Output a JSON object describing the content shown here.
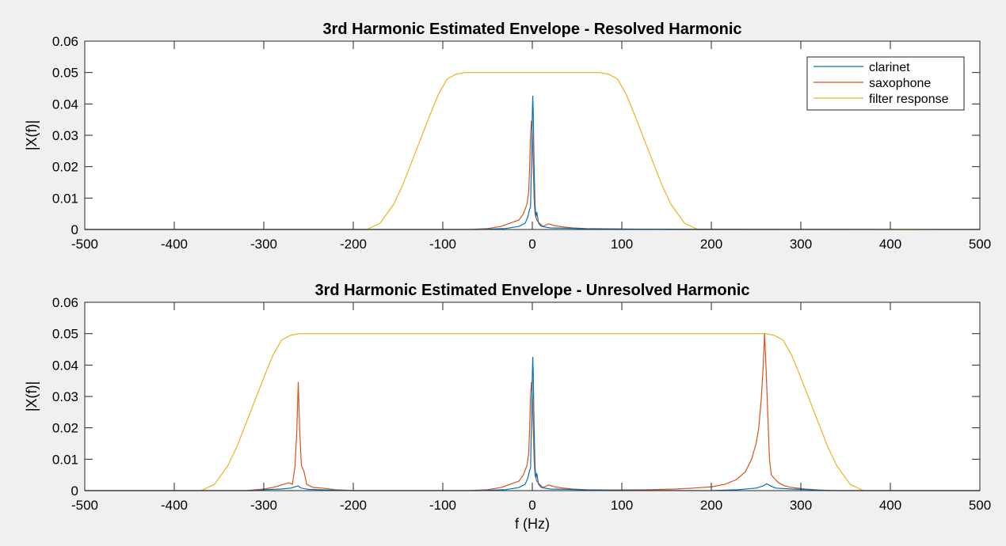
{
  "chart_data": [
    {
      "type": "line",
      "title": "3rd Harmonic Estimated Envelope - Resolved Harmonic",
      "xlabel": "",
      "ylabel": "|X(f)|",
      "xlim": [
        -500,
        500
      ],
      "ylim": [
        0,
        0.06
      ],
      "xticks": [
        -500,
        -400,
        -300,
        -200,
        -100,
        0,
        100,
        200,
        300,
        400,
        500
      ],
      "xtick_labels": [
        "-500",
        "-400",
        "-300",
        "-200",
        "-100",
        "0",
        "100",
        "200",
        "300",
        "400",
        "500"
      ],
      "yticks": [
        0,
        0.01,
        0.02,
        0.03,
        0.04,
        0.05,
        0.06
      ],
      "ytick_labels": [
        "0",
        "0.01",
        "0.02",
        "0.03",
        "0.04",
        "0.05",
        "0.06"
      ],
      "grid": false,
      "legend": {
        "position": "top-right",
        "entries": [
          "clarinet",
          "saxophone",
          "filter response"
        ]
      },
      "series": [
        {
          "name": "clarinet",
          "color": "#0072bd",
          "points": [
            [
              -500,
              0
            ],
            [
              -60,
              0
            ],
            [
              -30,
              0.0003
            ],
            [
              -15,
              0.001
            ],
            [
              -8,
              0.002
            ],
            [
              -5,
              0.004
            ],
            [
              -3,
              0.0065
            ],
            [
              -2,
              0.007
            ],
            [
              -1,
              0.02
            ],
            [
              0,
              0.037
            ],
            [
              0.5,
              0.0425
            ],
            [
              1,
              0.038
            ],
            [
              2,
              0.02
            ],
            [
              3,
              0.008
            ],
            [
              4,
              0.004
            ],
            [
              5,
              0.0055
            ],
            [
              7,
              0.002
            ],
            [
              10,
              0.001
            ],
            [
              20,
              0.0005
            ],
            [
              40,
              0.0004
            ],
            [
              60,
              0.0002
            ],
            [
              100,
              0.0001
            ],
            [
              500,
              0
            ]
          ]
        },
        {
          "name": "saxophone",
          "color": "#d95319",
          "points": [
            [
              -500,
              0
            ],
            [
              -70,
              0
            ],
            [
              -50,
              0.0003
            ],
            [
              -35,
              0.001
            ],
            [
              -25,
              0.002
            ],
            [
              -15,
              0.003
            ],
            [
              -10,
              0.005
            ],
            [
              -6,
              0.008
            ],
            [
              -4,
              0.012
            ],
            [
              -3,
              0.02
            ],
            [
              -2,
              0.03
            ],
            [
              -1,
              0.0345
            ],
            [
              0,
              0.03
            ],
            [
              1,
              0.02
            ],
            [
              2,
              0.01
            ],
            [
              3,
              0.005
            ],
            [
              5,
              0.003
            ],
            [
              8,
              0.002
            ],
            [
              12,
              0.001
            ],
            [
              18,
              0.0018
            ],
            [
              25,
              0.0012
            ],
            [
              35,
              0.0008
            ],
            [
              45,
              0.0005
            ],
            [
              60,
              0.0003
            ],
            [
              90,
              0.0002
            ],
            [
              150,
              0
            ],
            [
              500,
              0
            ]
          ]
        },
        {
          "name": "filter response",
          "color": "#edb120",
          "points": [
            [
              -500,
              0
            ],
            [
              -185,
              0
            ],
            [
              -170,
              0.002
            ],
            [
              -155,
              0.008
            ],
            [
              -145,
              0.014
            ],
            [
              -130,
              0.025
            ],
            [
              -115,
              0.036
            ],
            [
              -105,
              0.043
            ],
            [
              -95,
              0.048
            ],
            [
              -85,
              0.0495
            ],
            [
              -75,
              0.05
            ],
            [
              -60,
              0.05
            ],
            [
              60,
              0.05
            ],
            [
              75,
              0.05
            ],
            [
              85,
              0.0495
            ],
            [
              95,
              0.048
            ],
            [
              105,
              0.043
            ],
            [
              115,
              0.036
            ],
            [
              130,
              0.025
            ],
            [
              145,
              0.014
            ],
            [
              155,
              0.008
            ],
            [
              170,
              0.002
            ],
            [
              185,
              0
            ],
            [
              500,
              0
            ]
          ]
        }
      ]
    },
    {
      "type": "line",
      "title": "3rd Harmonic Estimated Envelope - Unresolved Harmonic",
      "xlabel": "f (Hz)",
      "ylabel": "|X(f)|",
      "xlim": [
        -500,
        500
      ],
      "ylim": [
        0,
        0.06
      ],
      "xticks": [
        -500,
        -400,
        -300,
        -200,
        -100,
        0,
        100,
        200,
        300,
        400,
        500
      ],
      "xtick_labels": [
        "-500",
        "-400",
        "-300",
        "-200",
        "-100",
        "0",
        "100",
        "200",
        "300",
        "400",
        "500"
      ],
      "yticks": [
        0,
        0.01,
        0.02,
        0.03,
        0.04,
        0.05,
        0.06
      ],
      "ytick_labels": [
        "0",
        "0.01",
        "0.02",
        "0.03",
        "0.04",
        "0.05",
        "0.06"
      ],
      "grid": false,
      "series": [
        {
          "name": "clarinet",
          "color": "#0072bd",
          "points": [
            [
              -500,
              0
            ],
            [
              -310,
              0
            ],
            [
              -300,
              0.0003
            ],
            [
              -280,
              0.0005
            ],
            [
              -270,
              0.0008
            ],
            [
              -265,
              0.0012
            ],
            [
              -262,
              0.0015
            ],
            [
              -258,
              0.0008
            ],
            [
              -250,
              0.0004
            ],
            [
              -230,
              0.0002
            ],
            [
              -200,
              0
            ],
            [
              -60,
              0
            ],
            [
              -30,
              0.0003
            ],
            [
              -15,
              0.001
            ],
            [
              -8,
              0.002
            ],
            [
              -5,
              0.004
            ],
            [
              -3,
              0.0065
            ],
            [
              -2,
              0.007
            ],
            [
              -1,
              0.02
            ],
            [
              0,
              0.037
            ],
            [
              0.5,
              0.0425
            ],
            [
              1,
              0.038
            ],
            [
              2,
              0.02
            ],
            [
              3,
              0.008
            ],
            [
              4,
              0.004
            ],
            [
              5,
              0.0055
            ],
            [
              7,
              0.002
            ],
            [
              10,
              0.001
            ],
            [
              20,
              0.0005
            ],
            [
              40,
              0.0004
            ],
            [
              60,
              0.0002
            ],
            [
              100,
              0.0001
            ],
            [
              200,
              0
            ],
            [
              230,
              0.0003
            ],
            [
              250,
              0.0008
            ],
            [
              258,
              0.0015
            ],
            [
              262,
              0.0022
            ],
            [
              266,
              0.0015
            ],
            [
              272,
              0.0008
            ],
            [
              290,
              0.0005
            ],
            [
              310,
              0.0003
            ],
            [
              330,
              0
            ],
            [
              500,
              0
            ]
          ]
        },
        {
          "name": "saxophone",
          "color": "#d95319",
          "points": [
            [
              -500,
              0
            ],
            [
              -320,
              0
            ],
            [
              -300,
              0.0005
            ],
            [
              -290,
              0.001
            ],
            [
              -280,
              0.0018
            ],
            [
              -272,
              0.0025
            ],
            [
              -268,
              0.002
            ],
            [
              -265,
              0.008
            ],
            [
              -263,
              0.02
            ],
            [
              -261.5,
              0.0345
            ],
            [
              -260,
              0.02
            ],
            [
              -258,
              0.008
            ],
            [
              -255,
              0.006
            ],
            [
              -252,
              0.002
            ],
            [
              -245,
              0.001
            ],
            [
              -235,
              0.0008
            ],
            [
              -220,
              0.0003
            ],
            [
              -200,
              0
            ],
            [
              -70,
              0
            ],
            [
              -50,
              0.0003
            ],
            [
              -35,
              0.001
            ],
            [
              -25,
              0.002
            ],
            [
              -15,
              0.003
            ],
            [
              -10,
              0.005
            ],
            [
              -6,
              0.008
            ],
            [
              -4,
              0.012
            ],
            [
              -3,
              0.02
            ],
            [
              -2,
              0.03
            ],
            [
              -1,
              0.0345
            ],
            [
              0,
              0.03
            ],
            [
              1,
              0.02
            ],
            [
              2,
              0.01
            ],
            [
              3,
              0.005
            ],
            [
              5,
              0.003
            ],
            [
              8,
              0.002
            ],
            [
              12,
              0.001
            ],
            [
              18,
              0.0018
            ],
            [
              25,
              0.0012
            ],
            [
              35,
              0.0008
            ],
            [
              45,
              0.0005
            ],
            [
              60,
              0.0003
            ],
            [
              90,
              0.0002
            ],
            [
              130,
              0.0003
            ],
            [
              160,
              0.0005
            ],
            [
              180,
              0.0008
            ],
            [
              200,
              0.0012
            ],
            [
              215,
              0.002
            ],
            [
              228,
              0.0035
            ],
            [
              238,
              0.006
            ],
            [
              245,
              0.01
            ],
            [
              250,
              0.015
            ],
            [
              253,
              0.02
            ],
            [
              256,
              0.03
            ],
            [
              258,
              0.04
            ],
            [
              259.5,
              0.05
            ],
            [
              261,
              0.04
            ],
            [
              263,
              0.025
            ],
            [
              265,
              0.01
            ],
            [
              267,
              0.005
            ],
            [
              270,
              0.004
            ],
            [
              275,
              0.0025
            ],
            [
              282,
              0.0015
            ],
            [
              290,
              0.001
            ],
            [
              305,
              0.0005
            ],
            [
              320,
              0.0002
            ],
            [
              340,
              0
            ],
            [
              500,
              0
            ]
          ]
        },
        {
          "name": "filter response",
          "color": "#edb120",
          "points": [
            [
              -500,
              0
            ],
            [
              -370,
              0
            ],
            [
              -355,
              0.002
            ],
            [
              -340,
              0.008
            ],
            [
              -330,
              0.014
            ],
            [
              -315,
              0.025
            ],
            [
              -300,
              0.036
            ],
            [
              -290,
              0.043
            ],
            [
              -280,
              0.048
            ],
            [
              -270,
              0.0495
            ],
            [
              -260,
              0.05
            ],
            [
              -245,
              0.05
            ],
            [
              245,
              0.05
            ],
            [
              260,
              0.05
            ],
            [
              270,
              0.0495
            ],
            [
              280,
              0.048
            ],
            [
              290,
              0.043
            ],
            [
              300,
              0.036
            ],
            [
              315,
              0.025
            ],
            [
              330,
              0.014
            ],
            [
              340,
              0.008
            ],
            [
              355,
              0.002
            ],
            [
              370,
              0
            ],
            [
              500,
              0
            ]
          ]
        }
      ]
    }
  ]
}
